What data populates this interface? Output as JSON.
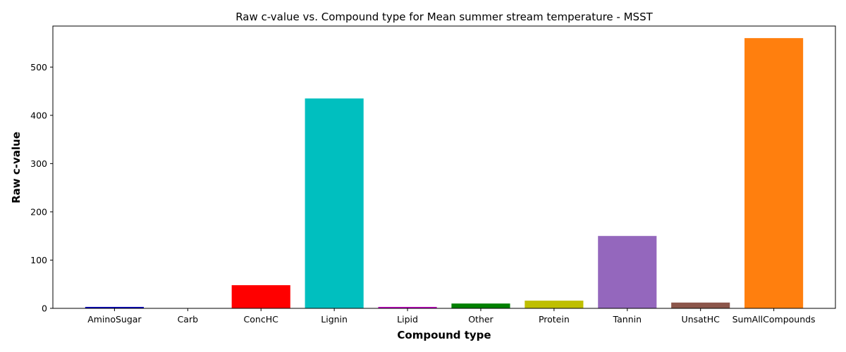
{
  "chart_data": {
    "type": "bar",
    "title": "Raw c-value vs. Compound type for Mean summer stream temperature - MSST",
    "xlabel": "Compound type",
    "ylabel": "Raw c-value",
    "categories": [
      "AminoSugar",
      "Carb",
      "ConcHC",
      "Lignin",
      "Lipid",
      "Other",
      "Protein",
      "Tannin",
      "UnsatHC",
      "SumAllCompounds"
    ],
    "values": [
      3,
      0,
      48,
      435,
      3,
      10,
      16,
      150,
      12,
      560
    ],
    "colors": [
      "#0000bf",
      "#000000",
      "#ff0000",
      "#00bfbf",
      "#bf00bf",
      "#008000",
      "#bfbf00",
      "#9467bd",
      "#8c564b",
      "#ff7f0e"
    ],
    "yticks": [
      0,
      100,
      200,
      300,
      400,
      500
    ],
    "ylim": [
      0,
      585
    ],
    "grid": false,
    "legend": "none"
  }
}
